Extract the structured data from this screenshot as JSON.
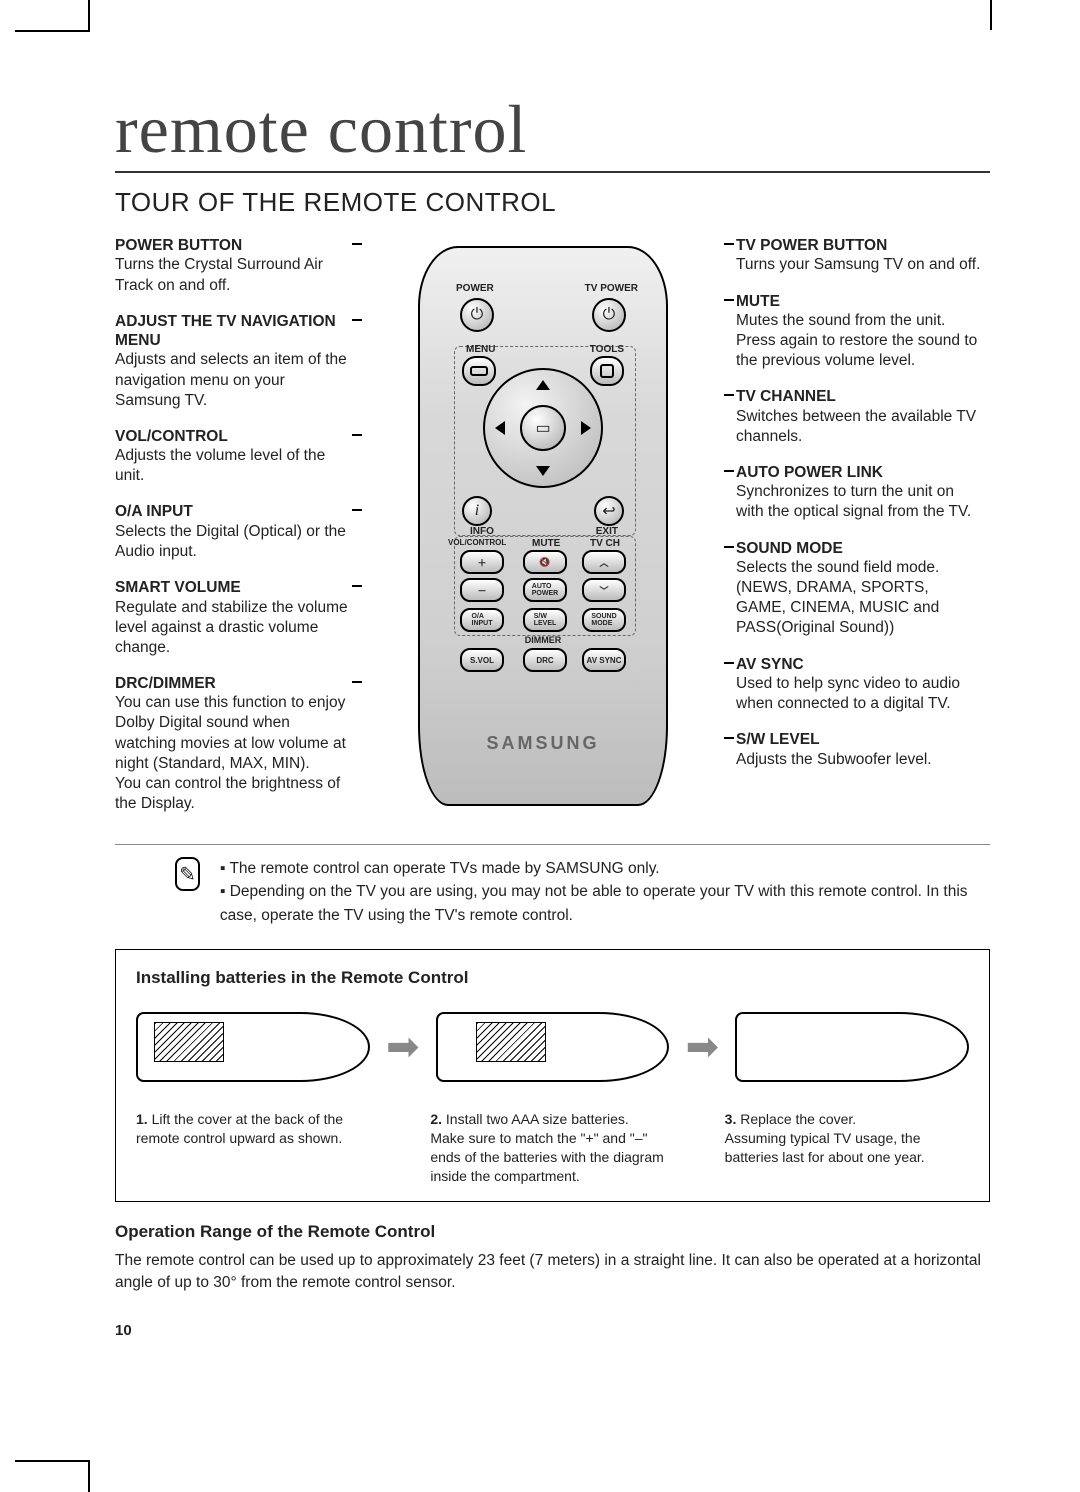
{
  "page_title": "remote control",
  "section_title": "TOUR OF THE REMOTE CONTROL",
  "left": [
    {
      "t": "POWER BUTTON",
      "b": "Turns the Crystal Surround Air Track on and off."
    },
    {
      "t": "ADJUST THE TV NAVIGATION MENU",
      "b": "Adjusts and selects an item of the navigation menu on your Samsung TV."
    },
    {
      "t": "VOL/CONTROL",
      "b": "Adjusts the volume level of the unit."
    },
    {
      "t": "O/A INPUT",
      "b": "Selects the Digital (Optical) or the Audio input."
    },
    {
      "t": "SMART VOLUME",
      "b": "Regulate and stabilize the volume level against a drastic volume change."
    },
    {
      "t": "DRC/DIMMER",
      "b": "You can use this function to enjoy Dolby Digital sound when watching movies at low volume at night (Standard, MAX, MIN).\nYou can control the brightness of  the Display."
    }
  ],
  "right": [
    {
      "t": "TV POWER BUTTON",
      "b": "Turns your Samsung TV on and off."
    },
    {
      "t": "MUTE",
      "b": "Mutes the sound from the unit. Press again to restore the sound to the previous volume level."
    },
    {
      "t": "TV CHANNEL",
      "b": "Switches between the available TV channels."
    },
    {
      "t": "AUTO POWER LINK",
      "b": "Synchronizes to turn the unit on with the optical signal from the TV."
    },
    {
      "t": "SOUND MODE",
      "b": "Selects the sound field mode. (NEWS, DRAMA, SPORTS, GAME, CINEMA, MUSIC and PASS(Original Sound))"
    },
    {
      "t": "AV SYNC",
      "b": "Used to help sync video to audio when connected to a digital TV."
    },
    {
      "t": "S/W LEVEL",
      "b": "Adjusts the Subwoofer level."
    }
  ],
  "remote": {
    "brand": "SAMSUNG",
    "labels": {
      "power": "POWER",
      "tvpower": "TV POWER",
      "menu": "MENU",
      "tools": "TOOLS",
      "info": "INFO",
      "exit": "EXIT",
      "volcontrol": "VOL/CONTROL",
      "mute": "MUTE",
      "tvch": "TV CH",
      "autopower": "AUTO\nPOWER",
      "oa": "O/A\nINPUT",
      "sw": "S/W\nLEVEL",
      "sound": "SOUND\nMODE",
      "svol": "S.VOL",
      "drc": "DRC",
      "avsync": "AV SYNC",
      "dimmer": "DIMMER"
    }
  },
  "notes": [
    "The remote control can operate TVs made by SAMSUNG only.",
    "Depending on the TV you are using, you may not be able to operate your TV with this remote control. In this case, operate the TV using the TV's remote control."
  ],
  "install": {
    "title": "Installing batteries in the Remote Control",
    "steps": [
      {
        "n": "1.",
        "t": "Lift the cover at the back of the remote control upward as shown."
      },
      {
        "n": "2.",
        "t": "Install two AAA size batteries.\nMake sure to match the \"+\" and \"–\" ends of the batteries with the diagram inside the compartment."
      },
      {
        "n": "3.",
        "t": "Replace the cover.\nAssuming typical TV usage, the batteries last for about one year."
      }
    ]
  },
  "operation": {
    "title": "Operation Range of the Remote Control",
    "body": "The remote control can be used up to approximately 23 feet (7 meters) in a straight line. It can also be operated at a horizontal angle of up to 30° from the remote control sensor."
  },
  "page_number": "10"
}
